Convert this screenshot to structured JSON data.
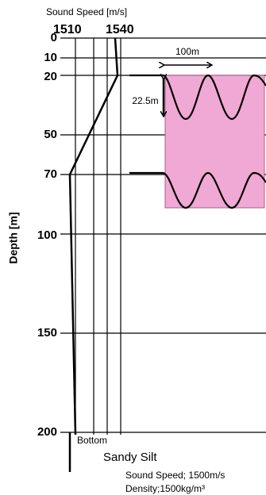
{
  "title": "Sound Speed [m/s]",
  "speed_labels": [
    "1510",
    "1540"
  ],
  "depth_labels": [
    "0",
    "10",
    "20",
    "50",
    "70",
    "100",
    "150",
    "200"
  ],
  "axis_label": "Depth [m]",
  "wavelength_label": "100m",
  "height_label": "22.5m",
  "bottom_label": "Bottom",
  "sediment": "Sandy Silt",
  "sediment_speed": "Sound Speed; 1500m/s",
  "sediment_density": "Density;1500kg/m³"
}
